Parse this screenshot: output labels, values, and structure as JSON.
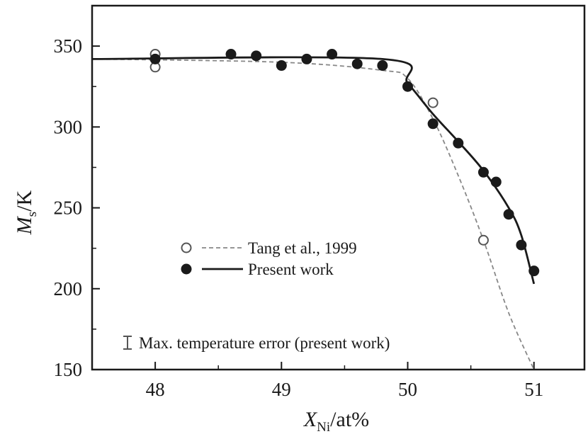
{
  "chart_data": {
    "type": "line",
    "xlabel": {
      "main": "X",
      "sub": "Ni",
      "unit": "/at%"
    },
    "ylabel": {
      "main": "M",
      "sub": "s",
      "unit": "/K"
    },
    "xlim": [
      47.5,
      51.4
    ],
    "ylim": [
      150,
      375
    ],
    "xticks": [
      48,
      49,
      50,
      51
    ],
    "yticks": [
      150,
      200,
      250,
      300,
      350
    ],
    "xtick_labels": [
      "48",
      "49",
      "50",
      "51"
    ],
    "ytick_labels": [
      "150",
      "200",
      "250",
      "300",
      "350"
    ],
    "grid": false,
    "legend_position": "center-left",
    "series": [
      {
        "name": "Tang et al., 1999",
        "marker": "open-circle",
        "line": "dashed",
        "color": "#888888",
        "points": [
          {
            "x": 48.0,
            "y": 345
          },
          {
            "x": 48.0,
            "y": 337
          },
          {
            "x": 50.2,
            "y": 315
          },
          {
            "x": 50.6,
            "y": 230
          }
        ],
        "curve": [
          {
            "x": 47.5,
            "y": 342
          },
          {
            "x": 49.0,
            "y": 340
          },
          {
            "x": 49.8,
            "y": 335
          },
          {
            "x": 50.0,
            "y": 330
          },
          {
            "x": 50.2,
            "y": 305
          },
          {
            "x": 50.4,
            "y": 270
          },
          {
            "x": 50.6,
            "y": 230
          },
          {
            "x": 50.8,
            "y": 185
          },
          {
            "x": 51.0,
            "y": 150
          }
        ]
      },
      {
        "name": "Present work",
        "marker": "filled-circle",
        "line": "solid",
        "color": "#1a1a1a",
        "points": [
          {
            "x": 48.0,
            "y": 342
          },
          {
            "x": 48.6,
            "y": 345
          },
          {
            "x": 48.8,
            "y": 344
          },
          {
            "x": 49.0,
            "y": 338
          },
          {
            "x": 49.2,
            "y": 342
          },
          {
            "x": 49.4,
            "y": 345
          },
          {
            "x": 49.6,
            "y": 339
          },
          {
            "x": 49.8,
            "y": 338
          },
          {
            "x": 50.0,
            "y": 325
          },
          {
            "x": 50.2,
            "y": 302
          },
          {
            "x": 50.4,
            "y": 290
          },
          {
            "x": 50.6,
            "y": 272
          },
          {
            "x": 50.7,
            "y": 266
          },
          {
            "x": 50.8,
            "y": 246
          },
          {
            "x": 50.9,
            "y": 227
          },
          {
            "x": 51.0,
            "y": 211
          }
        ],
        "curve": [
          {
            "x": 47.5,
            "y": 342
          },
          {
            "x": 49.8,
            "y": 342
          },
          {
            "x": 50.0,
            "y": 327
          },
          {
            "x": 50.2,
            "y": 308
          },
          {
            "x": 50.4,
            "y": 291
          },
          {
            "x": 50.6,
            "y": 273
          },
          {
            "x": 50.8,
            "y": 250
          },
          {
            "x": 50.9,
            "y": 233
          },
          {
            "x": 51.0,
            "y": 203
          }
        ]
      }
    ],
    "annotations": [
      {
        "text": "Max. temperature error (present work)",
        "icon": "error-bar-icon"
      }
    ]
  }
}
